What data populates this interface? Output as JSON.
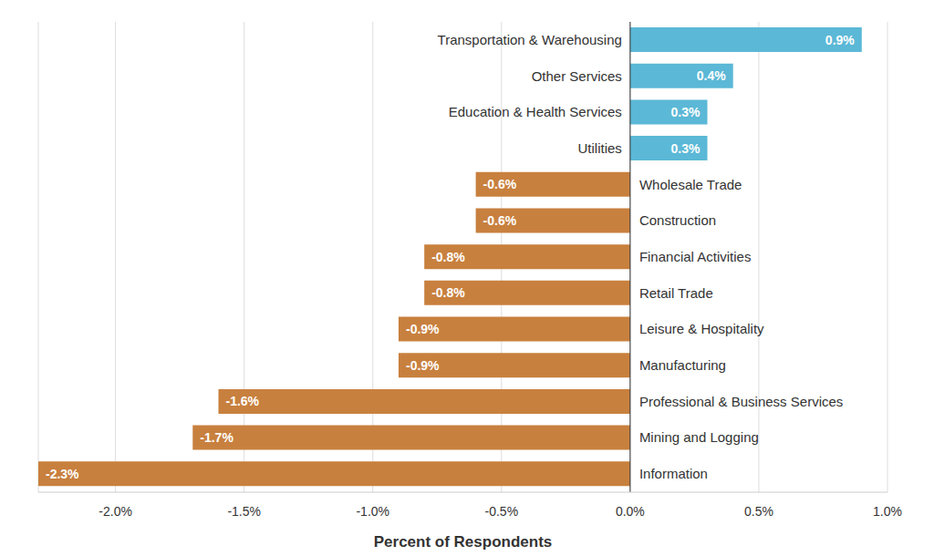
{
  "chart_data": {
    "type": "bar",
    "orientation": "horizontal",
    "categories": [
      "Transportation & Warehousing",
      "Other Services",
      "Education & Health Services",
      "Utilities",
      "Wholesale Trade",
      "Construction",
      "Financial Activities",
      "Retail Trade",
      "Leisure & Hospitality",
      "Manufacturing",
      "Professional & Business Services",
      "Mining and Logging",
      "Information"
    ],
    "values": [
      0.9,
      0.4,
      0.3,
      0.3,
      -0.6,
      -0.6,
      -0.8,
      -0.8,
      -0.9,
      -0.9,
      -1.6,
      -1.7,
      -2.3
    ],
    "value_labels": [
      "0.9%",
      "0.4%",
      "0.3%",
      "0.3%",
      "-0.6%",
      "-0.6%",
      "-0.8%",
      "-0.8%",
      "-0.9%",
      "-0.9%",
      "-1.6%",
      "-1.7%",
      "-2.3%"
    ],
    "colors": [
      "#5bb8d6",
      "#5bb8d6",
      "#5bb8d6",
      "#5bb8d6",
      "#c8803e",
      "#c8803e",
      "#c8803e",
      "#c8803e",
      "#c8803e",
      "#c8803e",
      "#c8803e",
      "#c8803e",
      "#c8803e"
    ],
    "xlim": [
      -2.3,
      1.0
    ],
    "xticks": [
      {
        "value": -2.0,
        "label": "-2.0%"
      },
      {
        "value": -1.5,
        "label": "-1.5%"
      },
      {
        "value": -1.0,
        "label": "-1.0%"
      },
      {
        "value": -0.5,
        "label": "-0.5%"
      },
      {
        "value": 0,
        "label": "0.0%"
      },
      {
        "value": 0.5,
        "label": "0.5%"
      },
      {
        "value": 1.0,
        "label": "1.0%"
      }
    ],
    "x_label": "Percent of Respondents",
    "grid": true,
    "data_labels": true
  }
}
